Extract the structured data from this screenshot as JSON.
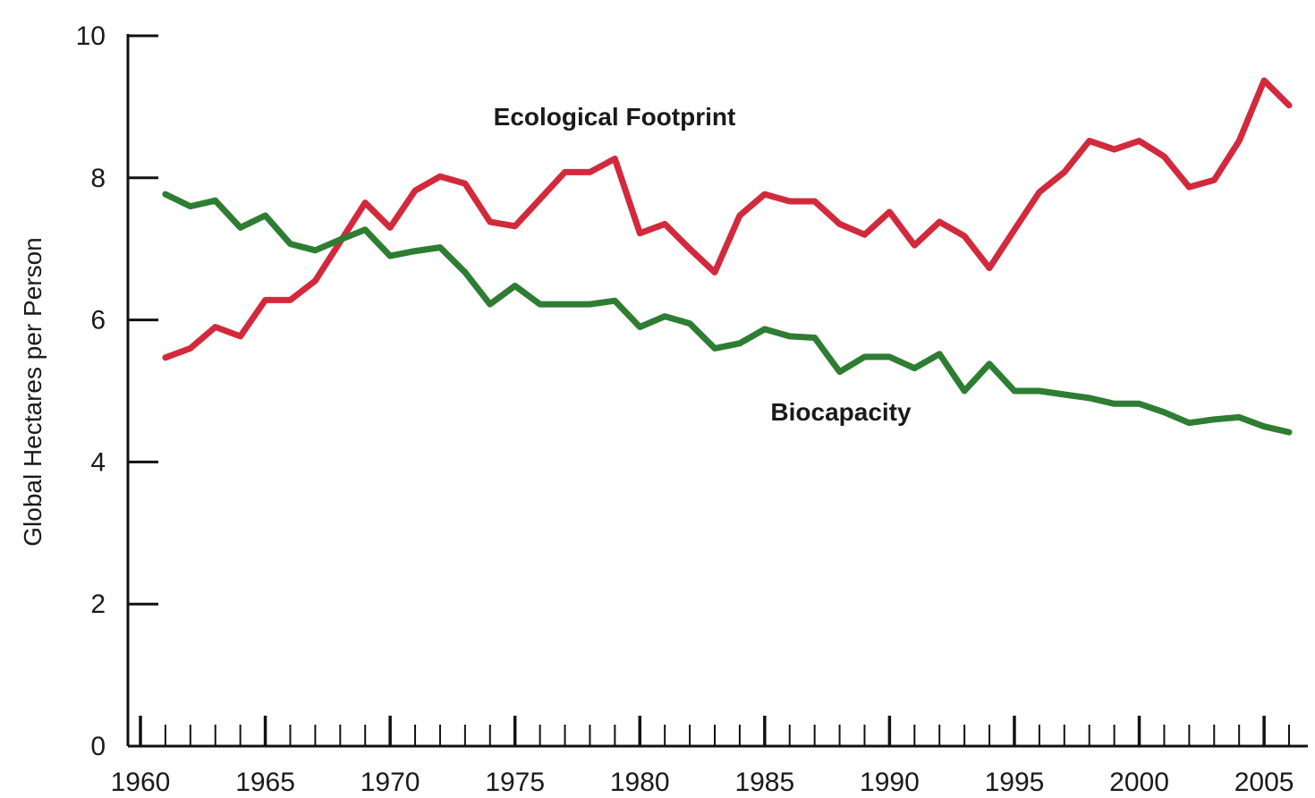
{
  "chart_data": {
    "type": "line",
    "title": "",
    "xlabel": "",
    "ylabel": "Global Hectares per Person",
    "xlim": [
      1960,
      2006
    ],
    "ylim": [
      0,
      10
    ],
    "x_tick_labels": [
      "1960",
      "1965",
      "1970",
      "1975",
      "1980",
      "1985",
      "1990",
      "1995",
      "2000",
      "2005"
    ],
    "y_tick_labels": [
      "0",
      "2",
      "4",
      "6",
      "8",
      "10"
    ],
    "grid": false,
    "x": [
      1961,
      1962,
      1963,
      1964,
      1965,
      1966,
      1967,
      1968,
      1969,
      1970,
      1971,
      1972,
      1973,
      1974,
      1975,
      1976,
      1977,
      1978,
      1979,
      1980,
      1981,
      1982,
      1983,
      1984,
      1985,
      1986,
      1987,
      1988,
      1989,
      1990,
      1991,
      1992,
      1993,
      1994,
      1995,
      1996,
      1997,
      1998,
      1999,
      2000,
      2001,
      2002,
      2003,
      2004,
      2005,
      2006
    ],
    "series": [
      {
        "name": "Ecological Footprint",
        "color": "#d22a3c",
        "values": [
          5.47,
          5.6,
          5.9,
          5.77,
          6.28,
          6.28,
          6.55,
          7.1,
          7.65,
          7.3,
          7.82,
          8.02,
          7.92,
          7.38,
          7.32,
          7.7,
          8.08,
          8.08,
          8.27,
          7.22,
          7.35,
          7.0,
          6.67,
          7.47,
          7.77,
          7.67,
          7.67,
          7.35,
          7.2,
          7.52,
          7.05,
          7.38,
          7.18,
          6.73,
          7.27,
          7.8,
          8.08,
          8.52,
          8.4,
          8.52,
          8.3,
          7.87,
          7.97,
          8.52,
          9.37,
          9.02
        ]
      },
      {
        "name": "Biocapacity",
        "color": "#2e7d32",
        "values": [
          7.77,
          7.6,
          7.68,
          7.3,
          7.47,
          7.07,
          6.98,
          7.13,
          7.27,
          6.9,
          6.97,
          7.02,
          6.67,
          6.22,
          6.48,
          6.22,
          6.22,
          6.22,
          6.27,
          5.9,
          6.05,
          5.95,
          5.6,
          5.67,
          5.87,
          5.77,
          5.75,
          5.27,
          5.48,
          5.48,
          5.32,
          5.52,
          5.0,
          5.38,
          5.0,
          5.0,
          4.95,
          4.9,
          4.82,
          4.82,
          4.7,
          4.55,
          4.6,
          4.63,
          4.5,
          4.42
        ]
      }
    ]
  }
}
